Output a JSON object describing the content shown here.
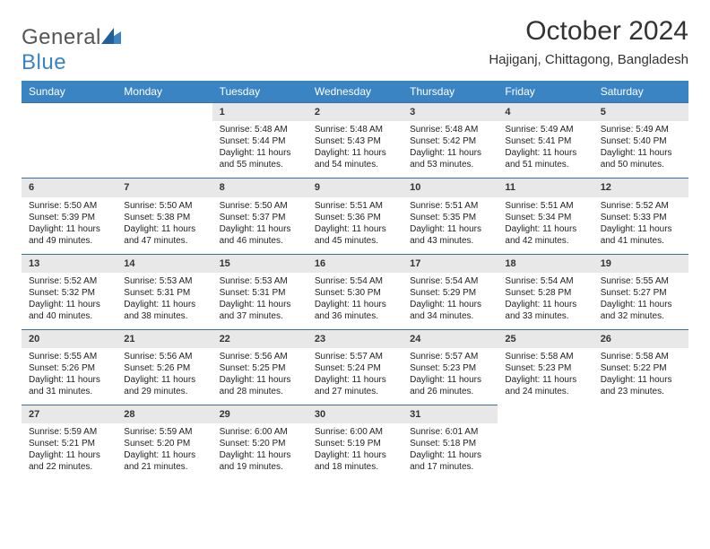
{
  "logo": {
    "word1": "General",
    "word2": "Blue"
  },
  "title": "October 2024",
  "subtitle": "Hajiganj, Chittagong, Bangladesh",
  "colors": {
    "header_bg": "#3b84c4",
    "header_text": "#ffffff",
    "row_divider": "#3b6fa0",
    "daynum_bg": "#e8e8e8",
    "page_bg": "#ffffff",
    "body_text": "#222222"
  },
  "calendar": {
    "type": "table",
    "columns": [
      "Sunday",
      "Monday",
      "Tuesday",
      "Wednesday",
      "Thursday",
      "Friday",
      "Saturday"
    ],
    "start_weekday_index": 2,
    "days": [
      {
        "n": 1,
        "sunrise": "5:48 AM",
        "sunset": "5:44 PM",
        "daylight": "11 hours and 55 minutes."
      },
      {
        "n": 2,
        "sunrise": "5:48 AM",
        "sunset": "5:43 PM",
        "daylight": "11 hours and 54 minutes."
      },
      {
        "n": 3,
        "sunrise": "5:48 AM",
        "sunset": "5:42 PM",
        "daylight": "11 hours and 53 minutes."
      },
      {
        "n": 4,
        "sunrise": "5:49 AM",
        "sunset": "5:41 PM",
        "daylight": "11 hours and 51 minutes."
      },
      {
        "n": 5,
        "sunrise": "5:49 AM",
        "sunset": "5:40 PM",
        "daylight": "11 hours and 50 minutes."
      },
      {
        "n": 6,
        "sunrise": "5:50 AM",
        "sunset": "5:39 PM",
        "daylight": "11 hours and 49 minutes."
      },
      {
        "n": 7,
        "sunrise": "5:50 AM",
        "sunset": "5:38 PM",
        "daylight": "11 hours and 47 minutes."
      },
      {
        "n": 8,
        "sunrise": "5:50 AM",
        "sunset": "5:37 PM",
        "daylight": "11 hours and 46 minutes."
      },
      {
        "n": 9,
        "sunrise": "5:51 AM",
        "sunset": "5:36 PM",
        "daylight": "11 hours and 45 minutes."
      },
      {
        "n": 10,
        "sunrise": "5:51 AM",
        "sunset": "5:35 PM",
        "daylight": "11 hours and 43 minutes."
      },
      {
        "n": 11,
        "sunrise": "5:51 AM",
        "sunset": "5:34 PM",
        "daylight": "11 hours and 42 minutes."
      },
      {
        "n": 12,
        "sunrise": "5:52 AM",
        "sunset": "5:33 PM",
        "daylight": "11 hours and 41 minutes."
      },
      {
        "n": 13,
        "sunrise": "5:52 AM",
        "sunset": "5:32 PM",
        "daylight": "11 hours and 40 minutes."
      },
      {
        "n": 14,
        "sunrise": "5:53 AM",
        "sunset": "5:31 PM",
        "daylight": "11 hours and 38 minutes."
      },
      {
        "n": 15,
        "sunrise": "5:53 AM",
        "sunset": "5:31 PM",
        "daylight": "11 hours and 37 minutes."
      },
      {
        "n": 16,
        "sunrise": "5:54 AM",
        "sunset": "5:30 PM",
        "daylight": "11 hours and 36 minutes."
      },
      {
        "n": 17,
        "sunrise": "5:54 AM",
        "sunset": "5:29 PM",
        "daylight": "11 hours and 34 minutes."
      },
      {
        "n": 18,
        "sunrise": "5:54 AM",
        "sunset": "5:28 PM",
        "daylight": "11 hours and 33 minutes."
      },
      {
        "n": 19,
        "sunrise": "5:55 AM",
        "sunset": "5:27 PM",
        "daylight": "11 hours and 32 minutes."
      },
      {
        "n": 20,
        "sunrise": "5:55 AM",
        "sunset": "5:26 PM",
        "daylight": "11 hours and 31 minutes."
      },
      {
        "n": 21,
        "sunrise": "5:56 AM",
        "sunset": "5:26 PM",
        "daylight": "11 hours and 29 minutes."
      },
      {
        "n": 22,
        "sunrise": "5:56 AM",
        "sunset": "5:25 PM",
        "daylight": "11 hours and 28 minutes."
      },
      {
        "n": 23,
        "sunrise": "5:57 AM",
        "sunset": "5:24 PM",
        "daylight": "11 hours and 27 minutes."
      },
      {
        "n": 24,
        "sunrise": "5:57 AM",
        "sunset": "5:23 PM",
        "daylight": "11 hours and 26 minutes."
      },
      {
        "n": 25,
        "sunrise": "5:58 AM",
        "sunset": "5:23 PM",
        "daylight": "11 hours and 24 minutes."
      },
      {
        "n": 26,
        "sunrise": "5:58 AM",
        "sunset": "5:22 PM",
        "daylight": "11 hours and 23 minutes."
      },
      {
        "n": 27,
        "sunrise": "5:59 AM",
        "sunset": "5:21 PM",
        "daylight": "11 hours and 22 minutes."
      },
      {
        "n": 28,
        "sunrise": "5:59 AM",
        "sunset": "5:20 PM",
        "daylight": "11 hours and 21 minutes."
      },
      {
        "n": 29,
        "sunrise": "6:00 AM",
        "sunset": "5:20 PM",
        "daylight": "11 hours and 19 minutes."
      },
      {
        "n": 30,
        "sunrise": "6:00 AM",
        "sunset": "5:19 PM",
        "daylight": "11 hours and 18 minutes."
      },
      {
        "n": 31,
        "sunrise": "6:01 AM",
        "sunset": "5:18 PM",
        "daylight": "11 hours and 17 minutes."
      }
    ],
    "labels": {
      "sunrise": "Sunrise:",
      "sunset": "Sunset:",
      "daylight": "Daylight:"
    }
  }
}
